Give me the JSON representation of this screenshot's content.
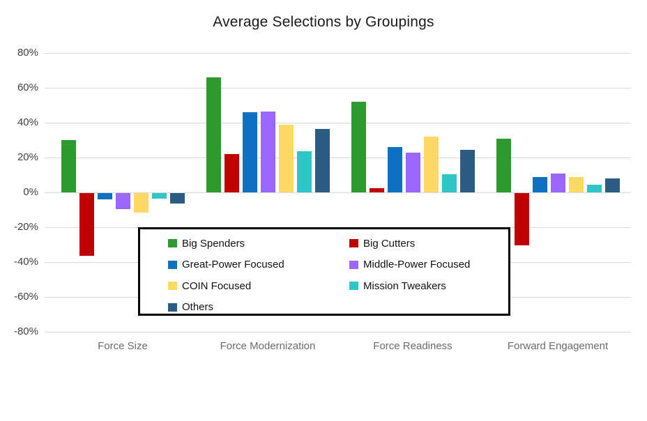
{
  "chart_data": {
    "type": "bar",
    "title": "Average Selections by Groupings",
    "value_unit": "%",
    "categories": [
      "Force Size",
      "Force Modernization",
      "Force Readiness",
      "Forward Engagement"
    ],
    "series": [
      {
        "name": "Big Spenders",
        "color": "#2e9b31",
        "values": [
          30,
          66,
          52,
          31
        ]
      },
      {
        "name": "Big Cutters",
        "color": "#c00000",
        "values": [
          -36,
          22,
          2.5,
          -30
        ]
      },
      {
        "name": "Great-Power Focused",
        "color": "#0e70c0",
        "values": [
          -3.5,
          46,
          26,
          9
        ]
      },
      {
        "name": "Middle-Power Focused",
        "color": "#9966ff",
        "values": [
          -9,
          46.5,
          23,
          11
        ]
      },
      {
        "name": "COIN Focused",
        "color": "#ffd965",
        "values": [
          -11,
          39,
          32,
          9
        ]
      },
      {
        "name": "Mission Tweakers",
        "color": "#2ec6c6",
        "values": [
          -3,
          23.5,
          10.5,
          4.5
        ]
      },
      {
        "name": "Others",
        "color": "#2b5d84",
        "values": [
          -6,
          36.5,
          24.5,
          8
        ]
      }
    ],
    "y_axis": {
      "min": -80,
      "max": 80,
      "step": 20,
      "tick_labels": [
        "80%",
        "60%",
        "40%",
        "20%",
        "0%",
        "-20%",
        "-40%",
        "-60%",
        "-80%"
      ]
    },
    "grid": true,
    "legend": {
      "position": "inside-bottom-center",
      "columns": 2,
      "border_color": "#000000",
      "background": "#ffffff"
    }
  }
}
